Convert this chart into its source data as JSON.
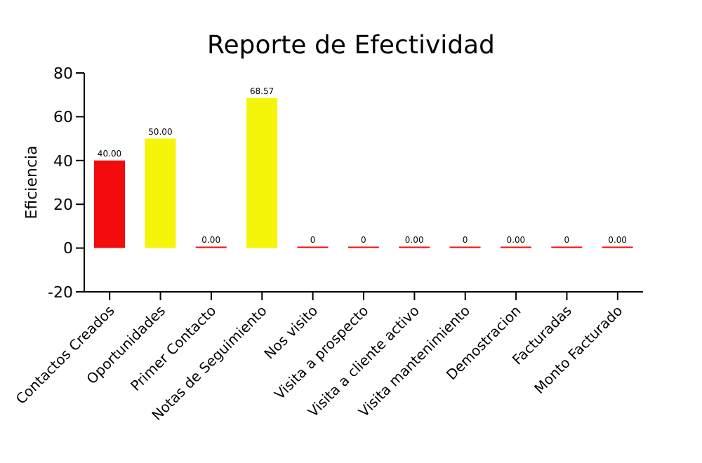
{
  "chart_data": {
    "type": "bar",
    "title": "Reporte de Efectividad",
    "ylabel": "Eficiencia",
    "categories": [
      "Contactos Creados",
      "Oportunidades",
      "Primer Contacto",
      "Notas de Seguimiento",
      "Nos visito",
      "Visita a prospecto",
      "Visita a cliente activo",
      "Visita mantenimiento",
      "Demostracion",
      "Facturadas",
      "Monto Facturado"
    ],
    "values": [
      40,
      50,
      0,
      68.57,
      0,
      0,
      0,
      0,
      0,
      0,
      0
    ],
    "colors": [
      "#f20c0c",
      "#f5f50a",
      "#f20c0c",
      "#f5f50a",
      "#f20c0c",
      "#f20c0c",
      "#f20c0c",
      "#f20c0c",
      "#f20c0c",
      "#f20c0c",
      "#f20c0c"
    ],
    "value_labels": [
      "40.00",
      "50.00",
      "0.00",
      "68.57",
      "0",
      "0",
      "0.00",
      "0",
      "0.00",
      "0",
      "0.00"
    ],
    "ylim": [
      -20,
      80
    ],
    "yticks": [
      -20,
      0,
      20,
      40,
      60,
      80
    ]
  }
}
